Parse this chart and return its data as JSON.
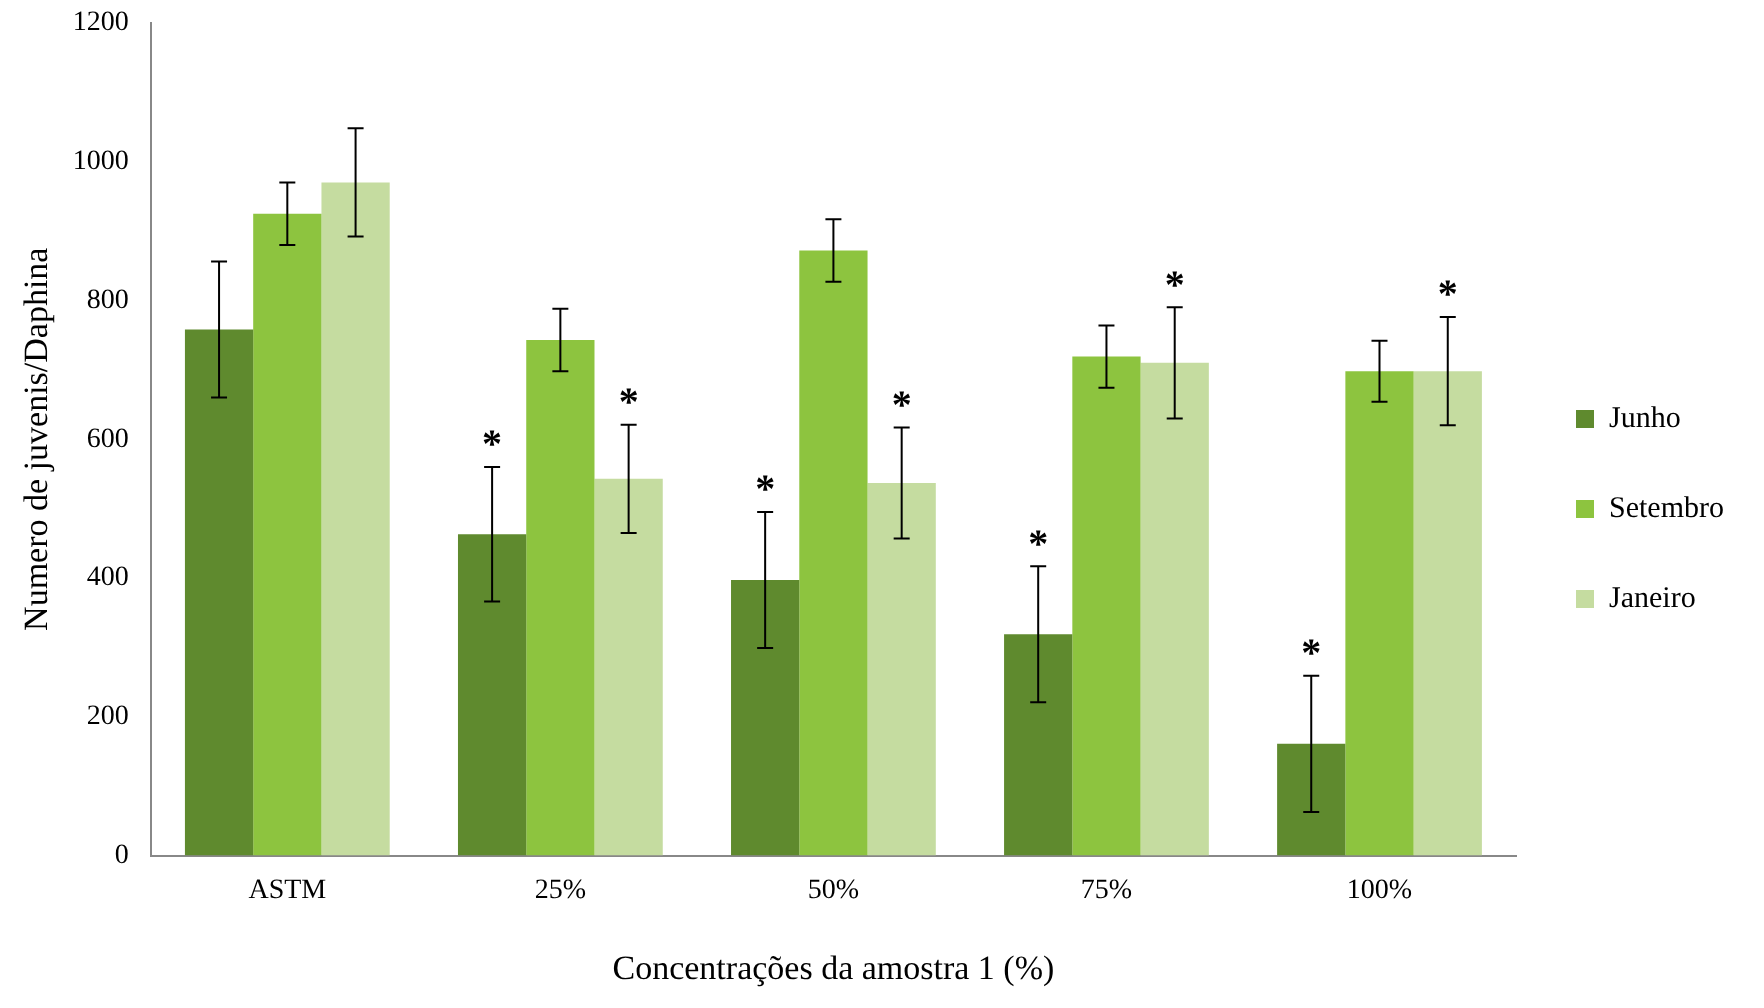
{
  "chart_data": {
    "type": "bar",
    "xlabel": "Concentrações da amostra 1 (%)",
    "ylabel": "Numero de juvenis/Daphina",
    "categories": [
      "ASTM",
      "25%",
      "50%",
      "75%",
      "100%"
    ],
    "series": [
      {
        "name": "Junho",
        "color": "#5f8a2e",
        "values": [
          758,
          463,
          397,
          319,
          161
        ],
        "errors": [
          98,
          97,
          98,
          98,
          98
        ],
        "value_labels": [
          null,
          "*",
          "*",
          "*",
          "*"
        ]
      },
      {
        "name": "Setembro",
        "color": "#8dc43f",
        "values": [
          925,
          743,
          872,
          719,
          698
        ],
        "errors": [
          45,
          45,
          45,
          45,
          44
        ]
      },
      {
        "name": "Janeiro",
        "color": "#c5dca0",
        "values": [
          970,
          543,
          537,
          710,
          698
        ],
        "errors": [
          78,
          78,
          80,
          80,
          78
        ],
        "value_labels": [
          null,
          "*",
          "*",
          "*",
          "*"
        ]
      }
    ],
    "ylim": [
      0,
      1200
    ],
    "yticks": [
      0,
      200,
      400,
      600,
      800,
      1000,
      1200
    ],
    "grid": false,
    "legend": "right"
  }
}
